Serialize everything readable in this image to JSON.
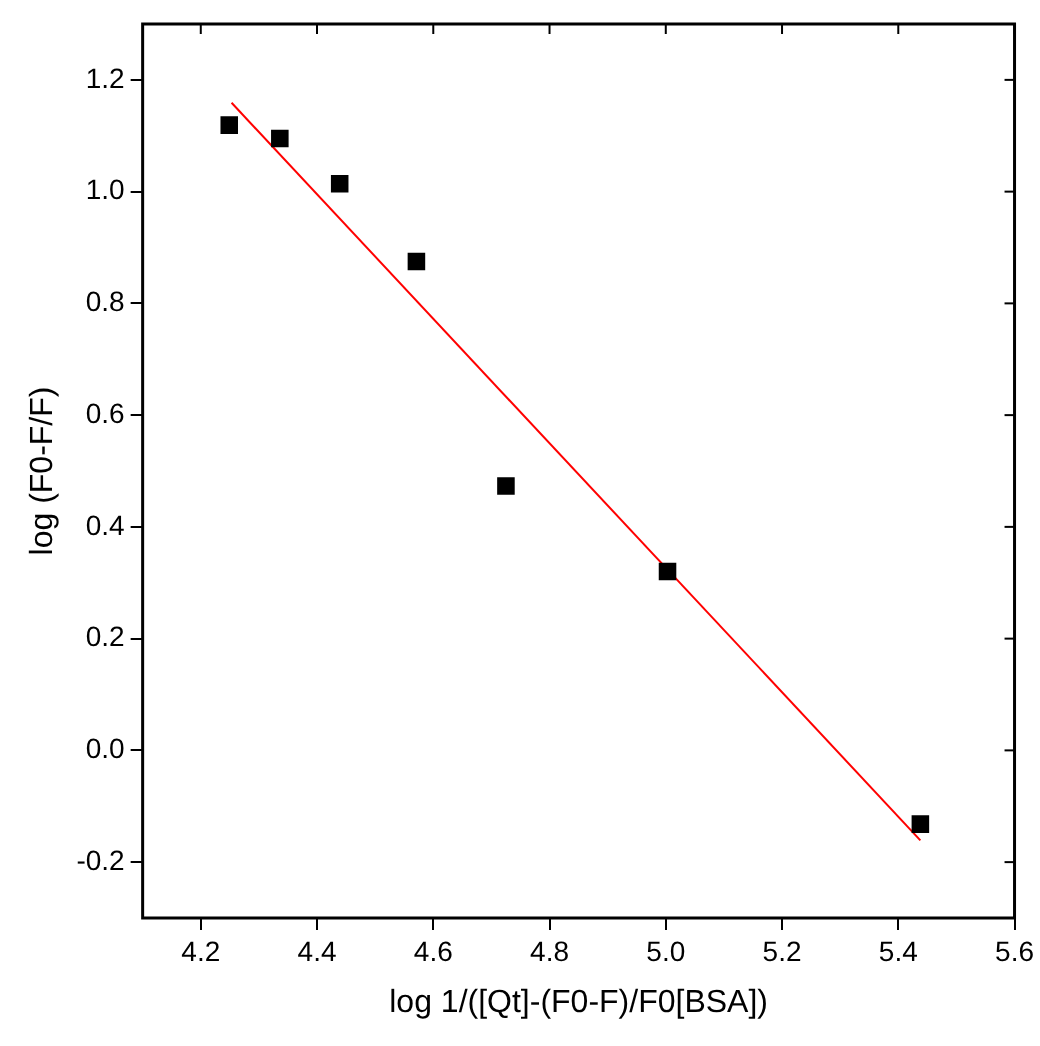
{
  "chart_data": {
    "type": "scatter",
    "xlabel": "log 1/([Qt]-(F0-F)/F0[BSA])",
    "ylabel": "log (F0-F/F)",
    "xlim": [
      4.1,
      5.6
    ],
    "xticks": [
      4.2,
      4.4,
      4.6,
      4.8,
      {
        "value": 5,
        "label": "5.0"
      },
      5.2,
      5.4,
      5.6
    ],
    "ylim": [
      -0.3,
      1.3
    ],
    "yticks": [
      -0.2,
      {
        "value": 0,
        "label": "0.0"
      },
      0.2,
      0.4,
      0.6,
      0.8,
      {
        "value": 1,
        "label": "1.0"
      },
      1.2
    ],
    "grid": false,
    "legend": false,
    "series": [
      {
        "color": "#000000",
        "marker": "square",
        "x": [
          4.249,
          4.336,
          4.439,
          4.571,
          4.725,
          5.003,
          5.438
        ],
        "values": [
          1.119,
          1.095,
          1.014,
          0.875,
          0.473,
          0.32,
          -0.132
        ]
      },
      {
        "type": "line",
        "color": "#ff0000",
        "marker": "none",
        "x": [
          4.253,
          5.438
        ],
        "values": [
          1.159,
          -0.161
        ]
      }
    ]
  }
}
